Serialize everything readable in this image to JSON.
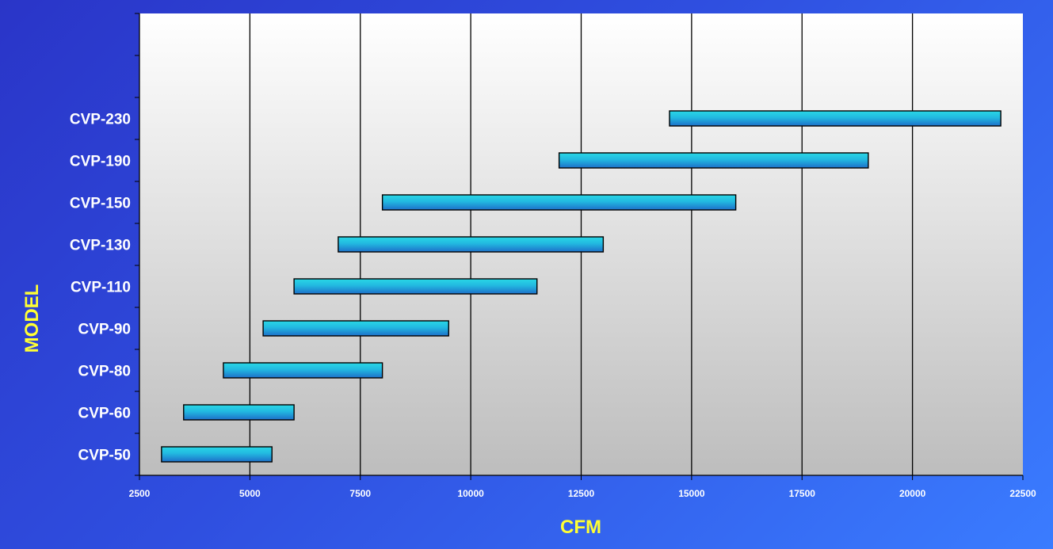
{
  "chart_data": {
    "type": "bar",
    "orientation": "horizontal-range",
    "title": "",
    "xlabel": "CFM",
    "ylabel": "MODEL",
    "xlim": [
      2500,
      22500
    ],
    "x_ticks": [
      2500,
      5000,
      7500,
      10000,
      12500,
      15000,
      17500,
      20000,
      22500
    ],
    "grid": "vertical",
    "categories": [
      "CVP-50",
      "CVP-60",
      "CVP-80",
      "CVP-90",
      "CVP-110",
      "CVP-130",
      "CVP-150",
      "CVP-190",
      "CVP-230"
    ],
    "ranges": [
      [
        3000,
        5500
      ],
      [
        3500,
        6000
      ],
      [
        4400,
        8000
      ],
      [
        5300,
        9500
      ],
      [
        6000,
        11500
      ],
      [
        7000,
        13000
      ],
      [
        8000,
        16000
      ],
      [
        12000,
        19000
      ],
      [
        14500,
        22000
      ]
    ],
    "slot_count": 11,
    "colors": {
      "bar_top": "#29d8e6",
      "bar_bottom": "#1d6fc9",
      "bar_border": "#000000",
      "axis_title": "#ffff33",
      "labels": "#ffffff"
    }
  }
}
